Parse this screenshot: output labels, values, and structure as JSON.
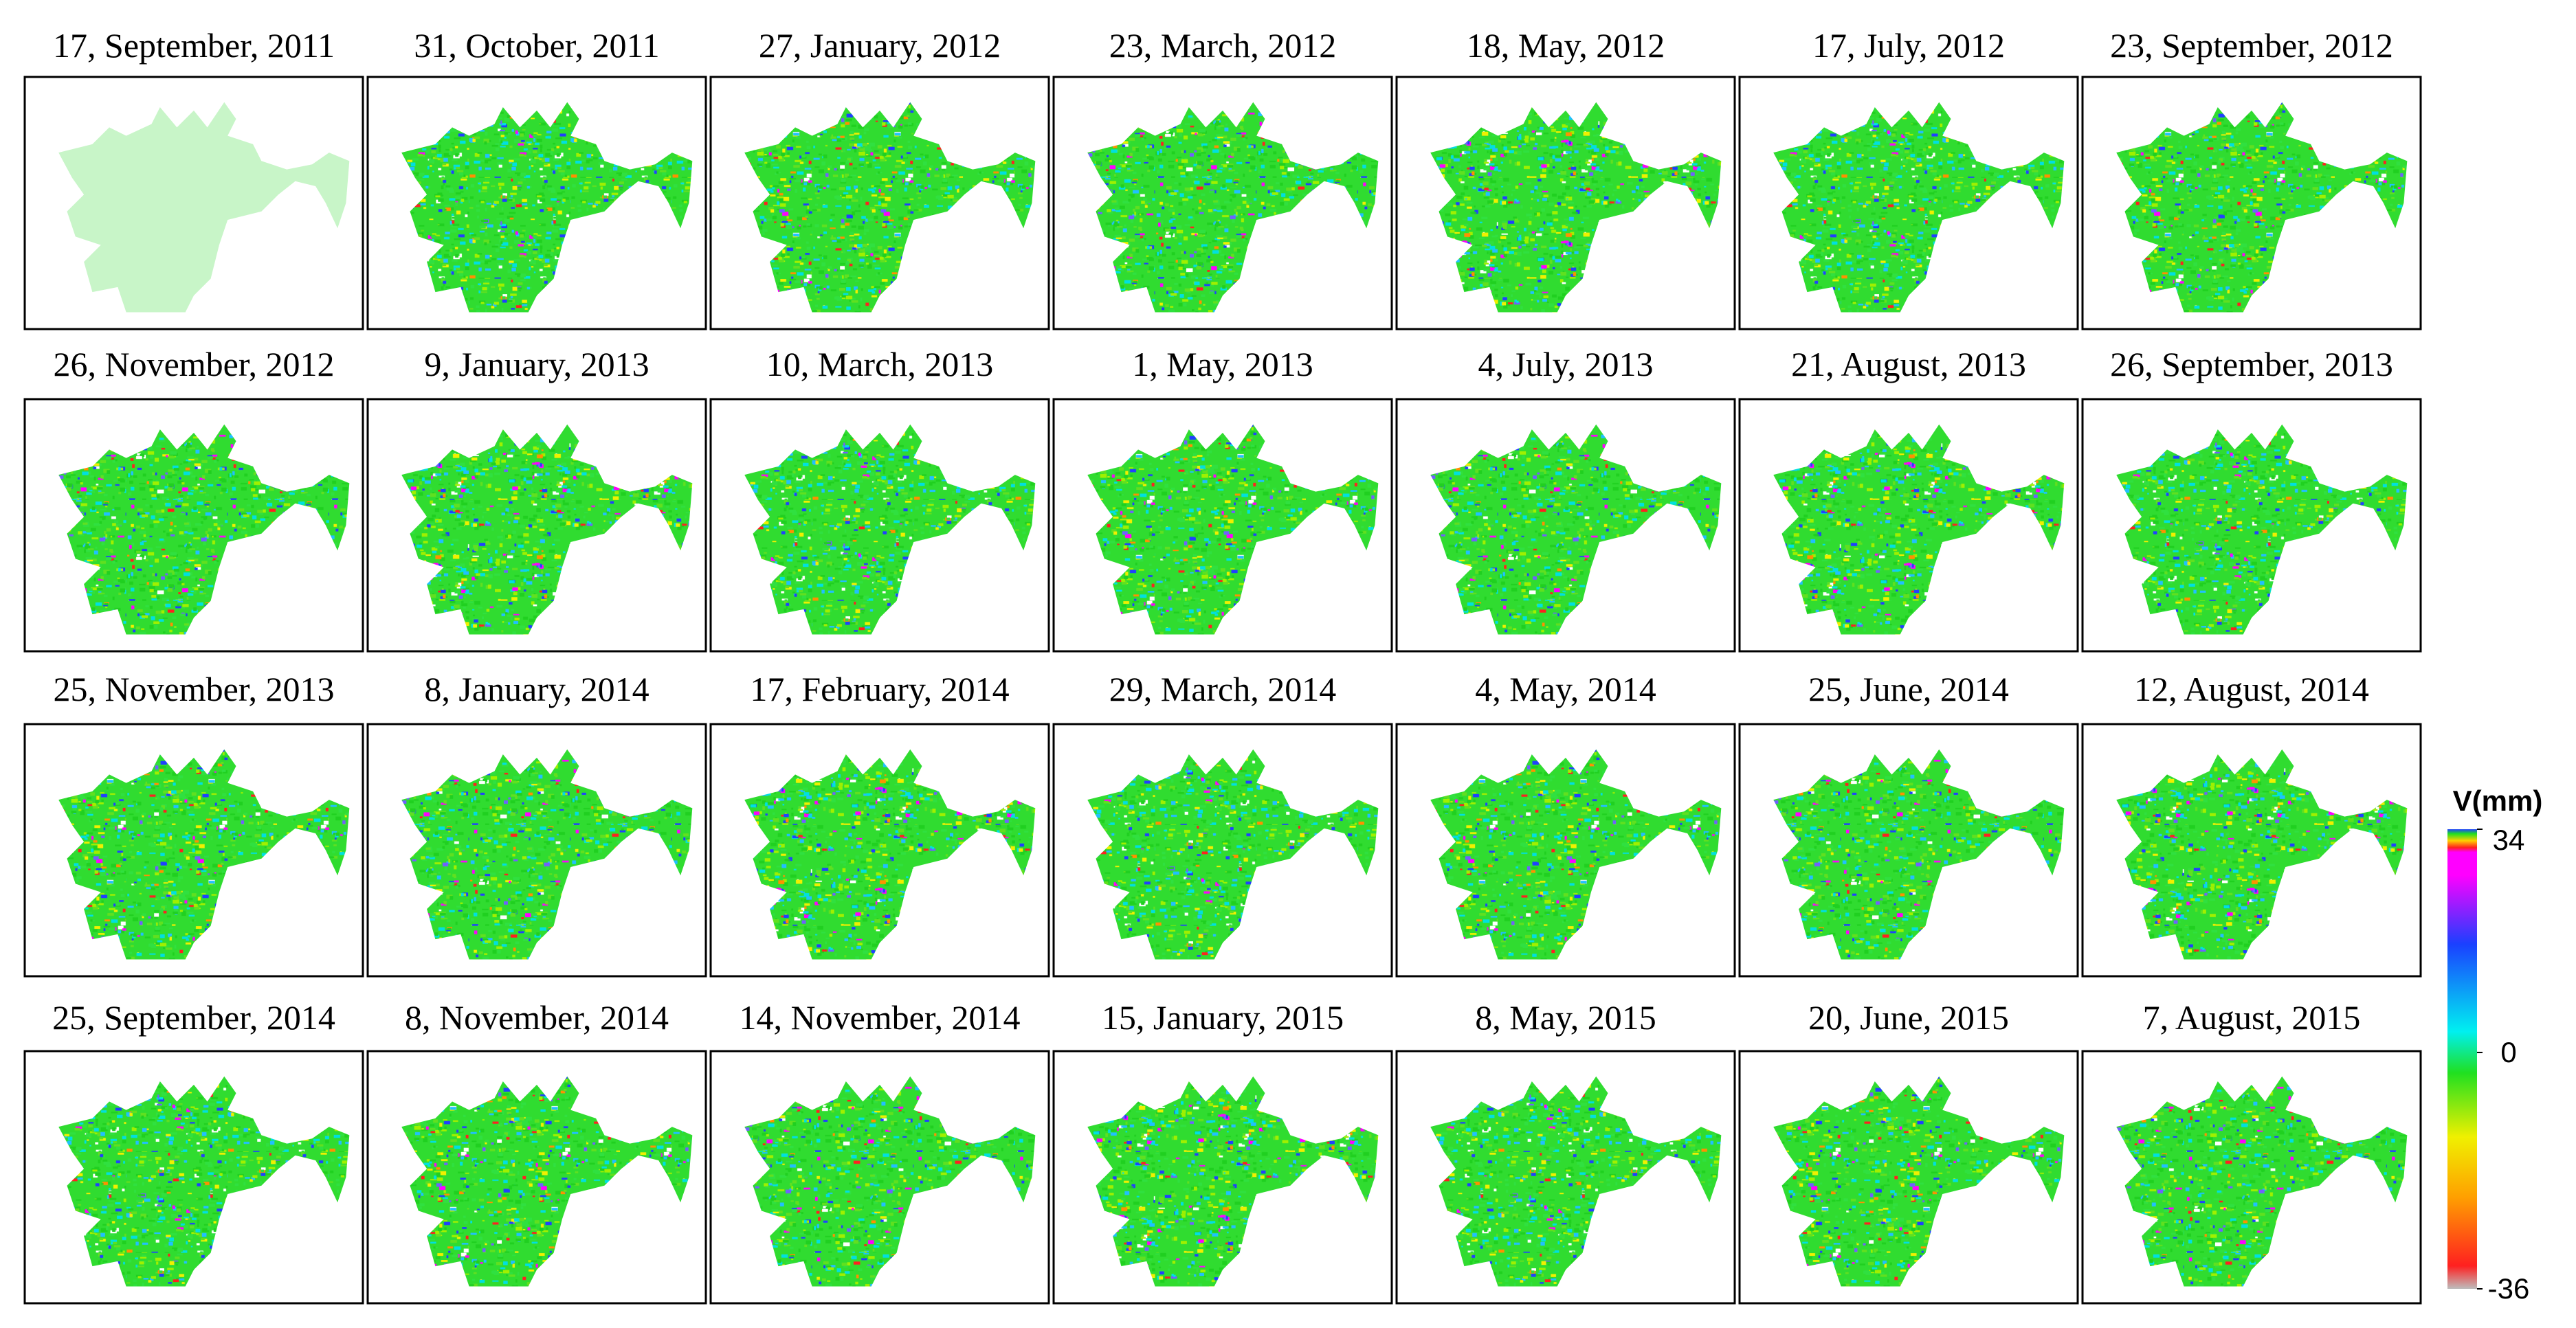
{
  "panels": [
    "17, September, 2011",
    "31, October, 2011",
    "27, January, 2012",
    "23, March, 2012",
    "18, May, 2012",
    "17, July, 2012",
    "23, September, 2012",
    "26, November, 2012",
    "9, January, 2013",
    "10, March, 2013",
    "1, May, 2013",
    "4, July, 2013",
    "21, August, 2013",
    "26, September, 2013",
    "25, November, 2013",
    "8, January, 2014",
    "17, February, 2014",
    "29, March, 2014",
    "4, May, 2014",
    "25, June, 2014",
    "12, August, 2014",
    "25, September, 2014",
    "8, November, 2014",
    "14, November, 2014",
    "15, January, 2015",
    "8, May, 2015",
    "20, June, 2015",
    "7, August, 2015"
  ],
  "colorbar": {
    "label": "V(mm)",
    "lim": [
      -36,
      34
    ],
    "ticks": [
      34,
      0,
      -36
    ]
  }
}
